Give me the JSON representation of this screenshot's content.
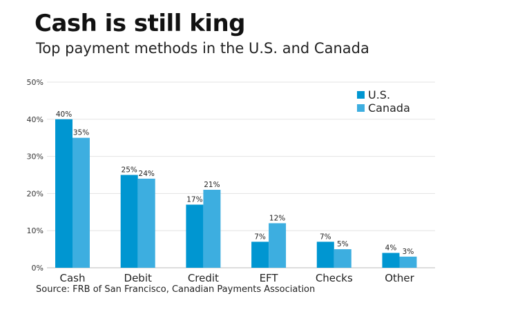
{
  "chart_data": {
    "type": "bar",
    "title": "Cash is still king",
    "subtitle": "Top payment methods in the U.S. and Canada",
    "source": "Source: FRB of San Francisco, Canadian Payments Association",
    "categories": [
      "Cash",
      "Debit",
      "Credit",
      "EFT",
      "Checks",
      "Other"
    ],
    "series": [
      {
        "name": "U.S.",
        "color": "#0096d1",
        "values": [
          40,
          25,
          17,
          7,
          7,
          4
        ],
        "labels": [
          "40%",
          "25%",
          "17%",
          "7%",
          "7%",
          "4%"
        ]
      },
      {
        "name": "Canada",
        "color": "#3daee0",
        "values": [
          35,
          24,
          21,
          12,
          5,
          3
        ],
        "labels": [
          "35%",
          "24%",
          "21%",
          "12%",
          "5%",
          "3%"
        ]
      }
    ],
    "ylim": [
      0,
      50
    ],
    "yticks": [
      "0%",
      "10%",
      "20%",
      "30%",
      "40%",
      "50%"
    ],
    "grid": true,
    "legend": "top-right",
    "xlabel": "",
    "ylabel": ""
  }
}
